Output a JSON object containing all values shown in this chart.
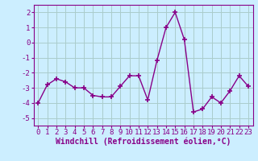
{
  "x": [
    0,
    1,
    2,
    3,
    4,
    5,
    6,
    7,
    8,
    9,
    10,
    11,
    12,
    13,
    14,
    15,
    16,
    17,
    18,
    19,
    20,
    21,
    22,
    23
  ],
  "y": [
    -4.0,
    -2.8,
    -2.4,
    -2.6,
    -3.0,
    -3.0,
    -3.5,
    -3.6,
    -3.6,
    -2.9,
    -2.2,
    -2.2,
    -3.8,
    -1.2,
    1.0,
    2.0,
    0.2,
    -4.6,
    -4.4,
    -3.6,
    -4.0,
    -3.2,
    -2.2,
    -2.9
  ],
  "line_color": "#880088",
  "marker": "+",
  "marker_size": 4,
  "marker_linewidth": 1.2,
  "xlabel": "Windchill (Refroidissement éolien,°C)",
  "xlabel_fontsize": 7,
  "ylabel_ticks": [
    -5,
    -4,
    -3,
    -2,
    -1,
    0,
    1,
    2
  ],
  "xlim": [
    -0.5,
    23.5
  ],
  "ylim": [
    -5.5,
    2.5
  ],
  "background_color": "#cceeff",
  "grid_color": "#aacccc",
  "tick_fontsize": 6.5,
  "line_width": 1.0
}
